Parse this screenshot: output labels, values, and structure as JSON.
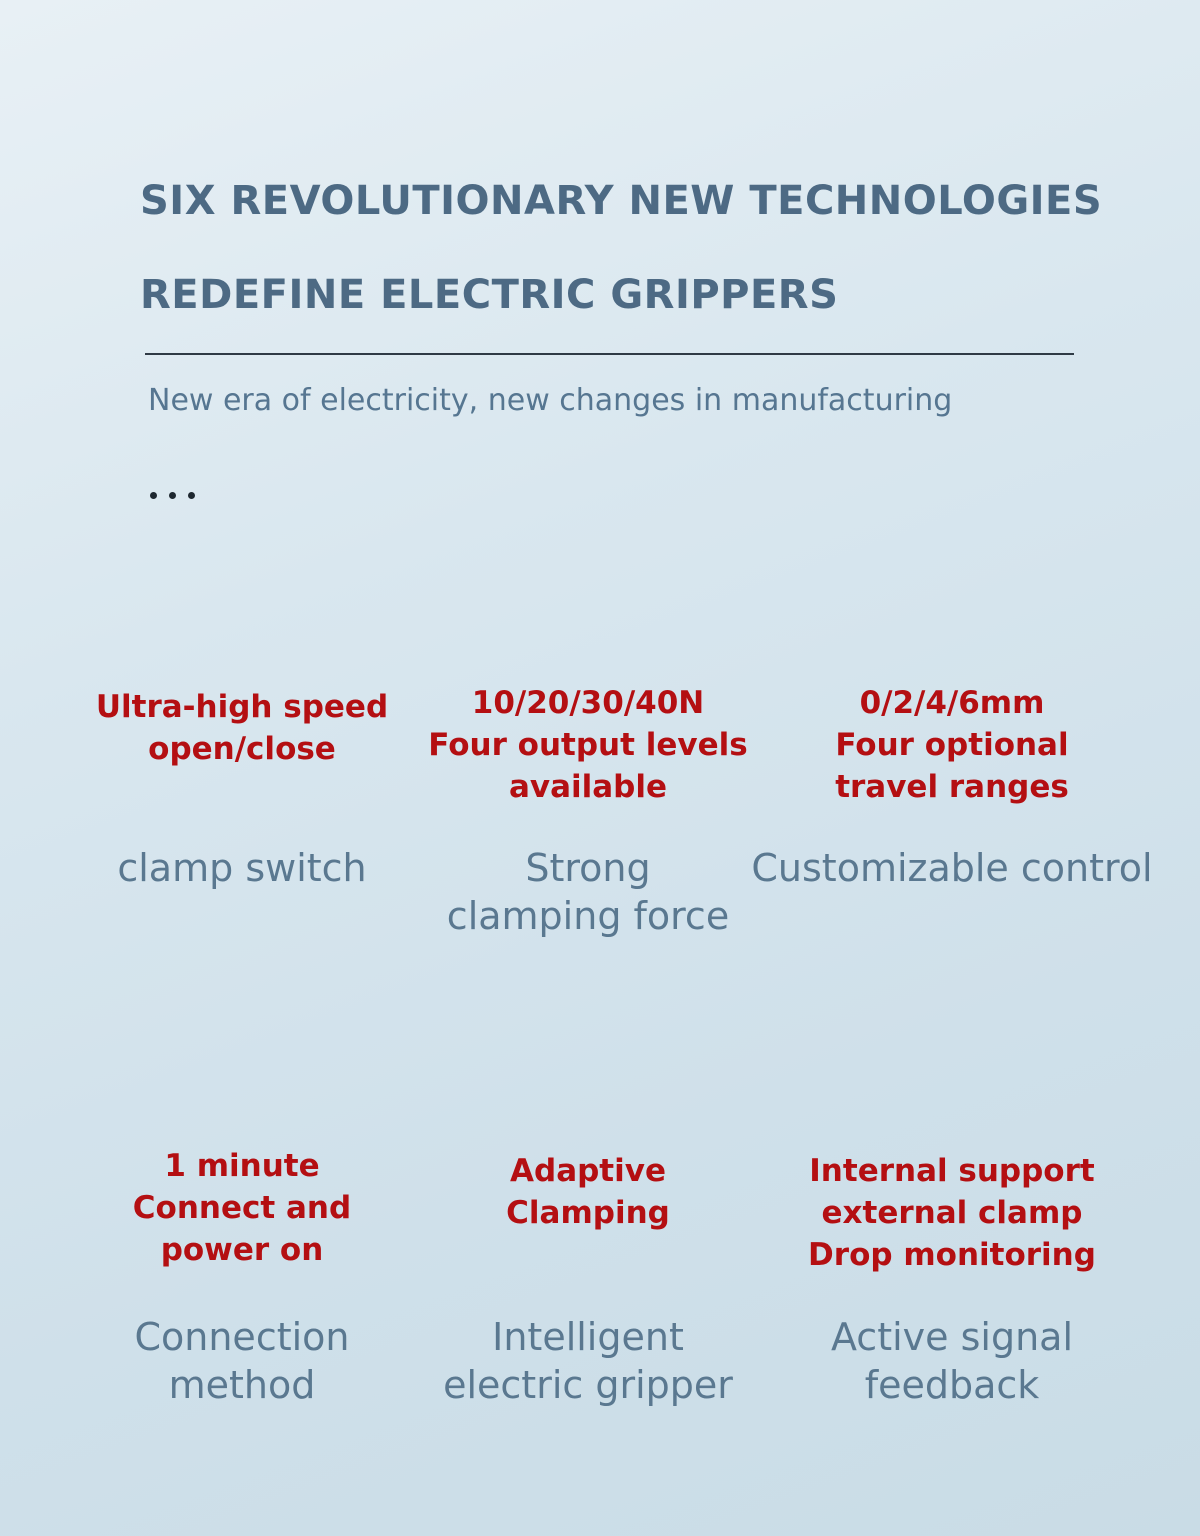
{
  "header": {
    "title_line1": "SIX REVOLUTIONARY NEW TECHNOLOGIES",
    "title_line2": "REDEFINE ELECTRIC GRIPPERS",
    "subtitle": "New era of electricity, new changes in manufacturing",
    "ellipsis": "..."
  },
  "features": [
    {
      "highlight": "Ultra-high speed\nopen/close",
      "description": "clamp switch"
    },
    {
      "highlight": "10/20/30/40N\nFour output levels\navailable",
      "description": "Strong\nclamping force"
    },
    {
      "highlight": "0/2/4/6mm\nFour optional\ntravel ranges",
      "description": "Customizable control"
    },
    {
      "highlight": "1 minute\nConnect and\npower on",
      "description": "Connection\nmethod"
    },
    {
      "highlight": "Adaptive\nClamping",
      "description": "Intelligent\nelectric gripper"
    },
    {
      "highlight": "Internal support\nexternal clamp\nDrop monitoring",
      "description": "Active signal\nfeedback"
    }
  ],
  "colors": {
    "title": "#4d6a84",
    "highlight": "#b40f12",
    "description": "#5a7890"
  }
}
